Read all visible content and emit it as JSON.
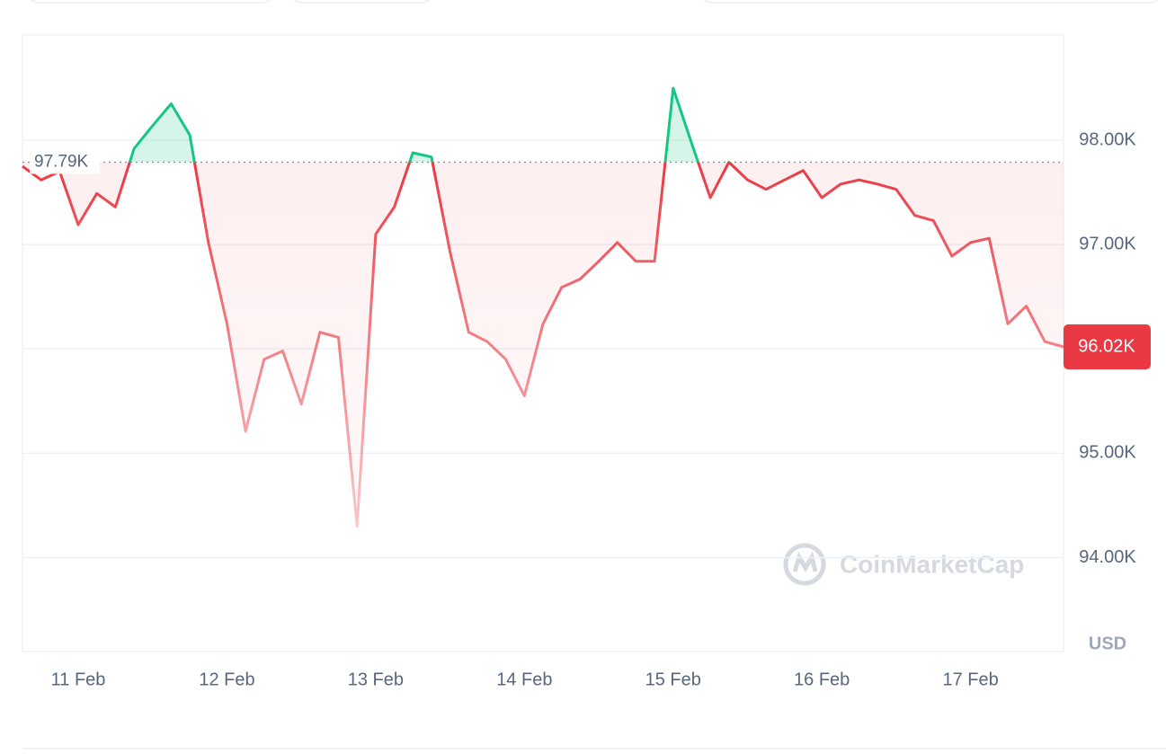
{
  "chart_data": {
    "type": "line",
    "categories": [
      null,
      null,
      null,
      "11 Feb",
      null,
      null,
      null,
      null,
      null,
      null,
      null,
      "12 Feb",
      null,
      null,
      null,
      null,
      null,
      null,
      null,
      "13 Feb",
      null,
      null,
      null,
      null,
      null,
      null,
      null,
      "14 Feb",
      null,
      null,
      null,
      null,
      null,
      null,
      null,
      "15 Feb",
      null,
      null,
      null,
      null,
      null,
      null,
      null,
      "16 Feb",
      null,
      null,
      null,
      null,
      null,
      null,
      null,
      "17 Feb",
      null,
      null,
      null,
      null,
      null
    ],
    "values": [
      97750,
      97620,
      97700,
      97190,
      97490,
      97360,
      97920,
      98140,
      98350,
      98050,
      97020,
      96240,
      95210,
      95900,
      95980,
      95470,
      96160,
      96110,
      94300,
      97100,
      97360,
      97880,
      97840,
      96930,
      96160,
      96070,
      95900,
      95550,
      96240,
      96590,
      96670,
      96840,
      97020,
      96840,
      96840,
      98500,
      97970,
      97450,
      97790,
      97620,
      97530,
      97620,
      97710,
      97450,
      97580,
      97620,
      97580,
      97530,
      97280,
      97230,
      96890,
      97020,
      97060,
      96240,
      96410,
      96070,
      96020
    ],
    "color_up": "#16c784",
    "color_down": "#ea3943",
    "reference": {
      "value": 97790,
      "label": "97.79K"
    },
    "last_price": {
      "value": 96020,
      "label": "96.02K"
    },
    "ylim": [
      93100,
      99000
    ],
    "yticks": [
      {
        "value": 94000,
        "label": "94.00K"
      },
      {
        "value": 95000,
        "label": "95.00K"
      },
      {
        "value": 96000,
        "label": "96.00K"
      },
      {
        "value": 97000,
        "label": "97.00K"
      },
      {
        "value": 98000,
        "label": "98.00K"
      }
    ],
    "grid": true,
    "y_unit": "USD",
    "watermark": "CoinMarketCap"
  }
}
